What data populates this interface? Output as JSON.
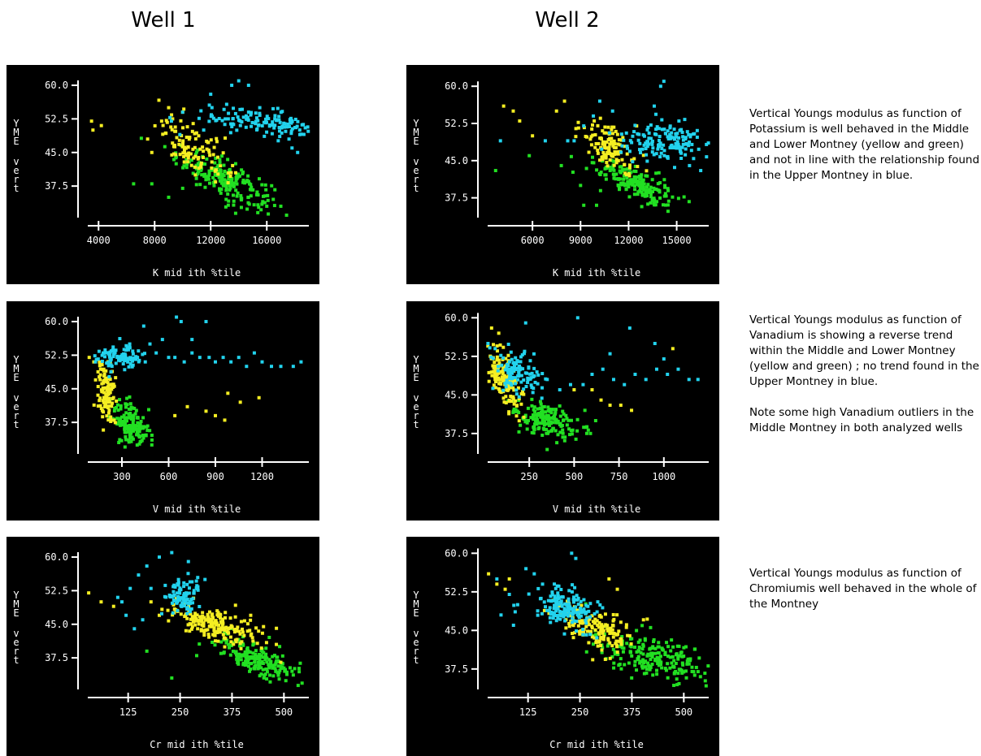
{
  "headers": {
    "well1": "Well 1",
    "well2": "Well 2"
  },
  "captions": {
    "row1": [
      "Vertical Youngs modulus  as function of Potassium  is well behaved in the Middle and Lower Montney (yellow and green) and not in line with the relationship found in the Upper Montney in blue."
    ],
    "row2": [
      "Vertical Youngs modulus  as function of Vanadium is showing  a reverse trend within the Middle and Lower Montney (yellow and green) ; no trend found in the Upper Montney in blue.",
      "Note some  high Vanadium outliers in the Middle Montney in both analyzed wells"
    ],
    "row3": [
      "Vertical Youngs modulus  as function of Chromiumis  well behaved in the whole of the Montney"
    ]
  },
  "colors": {
    "upper": "#22d3ee",
    "middle": "#f5ee22",
    "lower": "#22e022",
    "axis": "#ffffff",
    "background": "#000000"
  },
  "chart_data": [
    {
      "id": "w1k",
      "type": "scatter",
      "well": "Well 1",
      "xlabel": "K mid ith %tile",
      "ylabel": "YME vert",
      "xlim": [
        3000,
        19000
      ],
      "ylim": [
        31,
        62
      ],
      "xticks": [
        4000,
        8000,
        12000,
        16000
      ],
      "yticks": [
        60.0,
        52.5,
        45.0,
        37.5
      ],
      "series": [
        {
          "cluster": [
            16000,
            51.5,
            2400,
            1.8,
            -0.6,
            140
          ],
          "color": "upper",
          "scatter": [
            [
              9200,
              52
            ],
            [
              10000,
              54
            ],
            [
              11500,
              50
            ],
            [
              12000,
              58
            ],
            [
              13500,
              60
            ],
            [
              14000,
              61
            ],
            [
              14700,
              60
            ],
            [
              15500,
              55
            ],
            [
              17800,
              46
            ],
            [
              18200,
              45
            ],
            [
              9800,
              49
            ]
          ]
        },
        {
          "cluster": [
            10800,
            46,
            1300,
            3.2,
            -0.6,
            110
          ],
          "color": "middle",
          "scatter": [
            [
              3500,
              52
            ],
            [
              4200,
              51
            ],
            [
              3600,
              50
            ],
            [
              7500,
              48
            ],
            [
              8500,
              52
            ],
            [
              10000,
              54
            ],
            [
              7800,
              45
            ],
            [
              9000,
              55
            ]
          ]
        },
        {
          "cluster": [
            13000,
            39,
            1700,
            3.2,
            -0.75,
            210
          ],
          "color": "lower",
          "scatter": [
            [
              6500,
              38
            ],
            [
              7800,
              38
            ],
            [
              9000,
              35
            ],
            [
              10000,
              37
            ],
            [
              16000,
              33
            ],
            [
              17000,
              33
            ]
          ]
        }
      ]
    },
    {
      "id": "w2k",
      "type": "scatter",
      "well": "Well 2",
      "xlabel": "K mid ith %tile",
      "ylabel": "YME vert",
      "xlim": [
        3000,
        17000
      ],
      "ylim": [
        34,
        62
      ],
      "xticks": [
        6000,
        9000,
        12000,
        15000
      ],
      "yticks": [
        60.0,
        52.5,
        45.0,
        37.5
      ],
      "series": [
        {
          "cluster": [
            14300,
            49,
            1300,
            1.7,
            0.0,
            150
          ],
          "color": "upper",
          "scatter": [
            [
              8200,
              49
            ],
            [
              8600,
              49
            ],
            [
              9200,
              52
            ],
            [
              9800,
              54
            ],
            [
              10200,
              57
            ],
            [
              11000,
              55
            ],
            [
              14000,
              60
            ],
            [
              14200,
              61
            ],
            [
              13600,
              56
            ],
            [
              15800,
              44
            ],
            [
              16500,
              43
            ],
            [
              6800,
              49
            ],
            [
              4000,
              49
            ]
          ]
        },
        {
          "cluster": [
            10700,
            48,
            900,
            2.8,
            -0.6,
            120
          ],
          "color": "middle",
          "scatter": [
            [
              4200,
              56
            ],
            [
              4800,
              55
            ],
            [
              5200,
              53
            ],
            [
              6000,
              50
            ],
            [
              7500,
              55
            ],
            [
              8000,
              57
            ],
            [
              12500,
              52
            ]
          ]
        },
        {
          "cluster": [
            12400,
            40.5,
            1200,
            2.4,
            -0.75,
            190
          ],
          "color": "lower",
          "scatter": [
            [
              3700,
              43
            ],
            [
              5800,
              46
            ],
            [
              7800,
              44
            ],
            [
              9200,
              36
            ],
            [
              10000,
              36
            ],
            [
              9000,
              40
            ]
          ]
        }
      ]
    },
    {
      "id": "w1v",
      "type": "scatter",
      "well": "Well 1",
      "xlabel": "V mid ith %tile",
      "ylabel": "YME vert",
      "xlim": [
        60,
        1500
      ],
      "ylim": [
        31,
        62
      ],
      "xticks": [
        300,
        600,
        900,
        1200
      ],
      "yticks": [
        60.0,
        52.5,
        45.0,
        37.5
      ],
      "series": [
        {
          "cluster": [
            290,
            52,
            70,
            1.3,
            0.0,
            100
          ],
          "color": "upper",
          "scatter": [
            [
              400,
              52
            ],
            [
              450,
              51
            ],
            [
              520,
              53
            ],
            [
              600,
              52
            ],
            [
              640,
              52
            ],
            [
              700,
              51
            ],
            [
              750,
              53
            ],
            [
              800,
              52
            ],
            [
              860,
              52
            ],
            [
              900,
              51
            ],
            [
              950,
              52
            ],
            [
              1000,
              51
            ],
            [
              1050,
              52
            ],
            [
              1100,
              50
            ],
            [
              1150,
              53
            ],
            [
              1200,
              51
            ],
            [
              1260,
              50
            ],
            [
              1320,
              50
            ],
            [
              1400,
              50
            ],
            [
              1450,
              51
            ],
            [
              680,
              60
            ],
            [
              440,
              59
            ],
            [
              750,
              56
            ],
            [
              560,
              56
            ],
            [
              480,
              55
            ],
            [
              350,
              55
            ],
            [
              650,
              61
            ],
            [
              840,
              60
            ],
            [
              180,
              53
            ],
            [
              130,
              51
            ]
          ]
        },
        {
          "cluster": [
            200,
            44,
            30,
            3.6,
            0.0,
            120
          ],
          "color": "middle",
          "scatter": [
            [
              90,
              52
            ],
            [
              120,
              51
            ],
            [
              840,
              40
            ],
            [
              900,
              39
            ],
            [
              960,
              38
            ],
            [
              720,
              41
            ],
            [
              640,
              39
            ],
            [
              980,
              44
            ],
            [
              1060,
              42
            ],
            [
              1180,
              43
            ]
          ]
        },
        {
          "cluster": [
            360,
            37,
            60,
            2.6,
            -0.5,
            160
          ],
          "color": "lower",
          "scatter": [
            [
              280,
              33
            ],
            [
              320,
              32
            ]
          ]
        }
      ]
    },
    {
      "id": "w2v",
      "type": "scatter",
      "well": "Well 2",
      "xlabel": "V mid ith %tile",
      "ylabel": "YME vert",
      "xlim": [
        0,
        1250
      ],
      "ylim": [
        34,
        61
      ],
      "xticks": [
        250,
        500,
        750,
        1000
      ],
      "yticks": [
        60.0,
        52.5,
        45.0,
        37.5
      ],
      "series": [
        {
          "cluster": [
            190,
            49,
            65,
            2.3,
            -0.3,
            110
          ],
          "color": "upper",
          "scatter": [
            [
              350,
              48
            ],
            [
              420,
              46
            ],
            [
              480,
              47
            ],
            [
              550,
              47
            ],
            [
              600,
              49
            ],
            [
              660,
              50
            ],
            [
              720,
              48
            ],
            [
              780,
              47
            ],
            [
              840,
              49
            ],
            [
              900,
              48
            ],
            [
              960,
              50
            ],
            [
              1020,
              49
            ],
            [
              1080,
              50
            ],
            [
              1140,
              48
            ],
            [
              1190,
              48
            ],
            [
              230,
              59
            ],
            [
              520,
              60
            ],
            [
              810,
              58
            ],
            [
              950,
              55
            ],
            [
              1000,
              52
            ],
            [
              20,
              55
            ],
            [
              60,
              54
            ],
            [
              700,
              53
            ]
          ]
        },
        {
          "cluster": [
            110,
            48,
            45,
            3.0,
            -0.6,
            130
          ],
          "color": "middle",
          "scatter": [
            [
              40,
              58
            ],
            [
              80,
              57
            ],
            [
              600,
              46
            ],
            [
              650,
              44
            ],
            [
              700,
              43
            ],
            [
              760,
              43
            ],
            [
              820,
              42
            ],
            [
              500,
              46
            ],
            [
              1050,
              54
            ]
          ]
        },
        {
          "cluster": [
            340,
            40,
            90,
            1.9,
            -0.5,
            170
          ],
          "color": "lower",
          "scatter": [
            [
              560,
              42
            ],
            [
              620,
              40
            ]
          ]
        }
      ]
    },
    {
      "id": "w1c",
      "type": "scatter",
      "well": "Well 1",
      "xlabel": "Cr mid ith %tile",
      "ylabel": "YME vert",
      "xlim": [
        20,
        560
      ],
      "ylim": [
        31,
        62
      ],
      "xticks": [
        125,
        250,
        375,
        500
      ],
      "yticks": [
        60.0,
        52.5,
        45.0,
        37.5
      ],
      "series": [
        {
          "cluster": [
            255,
            51.5,
            20,
            1.8,
            0.0,
            90
          ],
          "color": "upper",
          "scatter": [
            [
              100,
              51
            ],
            [
              110,
              50
            ],
            [
              130,
              53
            ],
            [
              150,
              56
            ],
            [
              170,
              58
            ],
            [
              200,
              60
            ],
            [
              230,
              61
            ],
            [
              270,
              59
            ],
            [
              140,
              44
            ],
            [
              160,
              46
            ],
            [
              120,
              47
            ],
            [
              310,
              55
            ],
            [
              180,
              53
            ]
          ]
        },
        {
          "cluster": [
            330,
            45,
            55,
            2.4,
            -0.65,
            190
          ],
          "color": "middle",
          "scatter": [
            [
              30,
              52
            ],
            [
              60,
              50
            ],
            [
              90,
              49
            ],
            [
              180,
              50
            ],
            [
              200,
              47
            ],
            [
              420,
              47
            ]
          ]
        },
        {
          "cluster": [
            440,
            37,
            50,
            2.6,
            -0.7,
            200
          ],
          "color": "lower",
          "scatter": [
            [
              170,
              39
            ],
            [
              230,
              33
            ],
            [
              290,
              38
            ]
          ]
        }
      ]
    },
    {
      "id": "w2c",
      "type": "scatter",
      "well": "Well 2",
      "xlabel": "Cr mid ith %tile",
      "ylabel": "YME vert",
      "xlim": [
        20,
        560
      ],
      "ylim": [
        34,
        61
      ],
      "xticks": [
        125,
        250,
        375,
        500
      ],
      "yticks": [
        60.0,
        52.5,
        45.0,
        37.5
      ],
      "series": [
        {
          "cluster": [
            215,
            49.5,
            35,
            2.0,
            -0.3,
            160
          ],
          "color": "upper",
          "scatter": [
            [
              50,
              55
            ],
            [
              80,
              52
            ],
            [
              100,
              50
            ],
            [
              120,
              57
            ],
            [
              140,
              56
            ],
            [
              160,
              54
            ],
            [
              230,
              60
            ],
            [
              240,
              59
            ],
            [
              60,
              48
            ],
            [
              90,
              46
            ]
          ]
        },
        {
          "cluster": [
            285,
            46,
            45,
            2.4,
            -0.6,
            150
          ],
          "color": "middle",
          "scatter": [
            [
              30,
              56
            ],
            [
              50,
              54
            ],
            [
              70,
              53
            ],
            [
              340,
              53
            ],
            [
              320,
              55
            ],
            [
              80,
              55
            ]
          ]
        },
        {
          "cluster": [
            420,
            40,
            70,
            2.4,
            -0.55,
            210
          ],
          "color": "lower",
          "scatter": [
            [
              480,
              37
            ],
            [
              520,
              37
            ],
            [
              540,
              36
            ]
          ]
        }
      ]
    }
  ]
}
